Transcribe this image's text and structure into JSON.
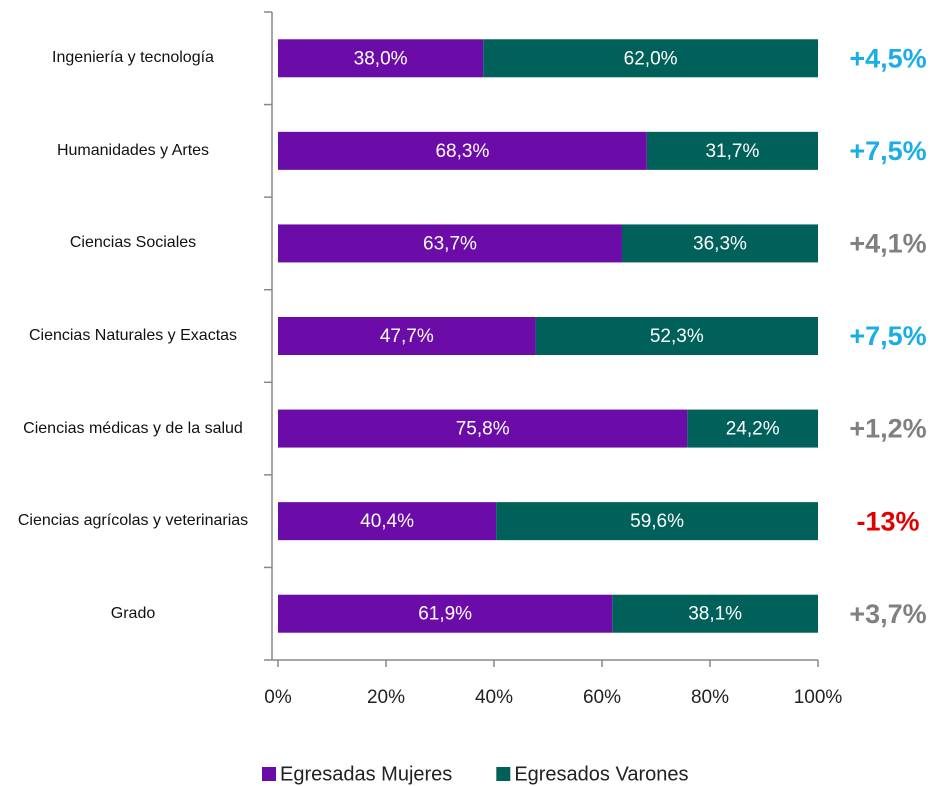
{
  "chart_data": {
    "type": "bar",
    "orientation": "horizontal",
    "stacked": true,
    "categories": [
      "Ingeniería y tecnología",
      "Humanidades y Artes",
      "Ciencias Sociales",
      "Ciencias Naturales y Exactas",
      "Ciencias médicas y de la salud",
      "Ciencias agrícolas y veterinarias",
      "Grado"
    ],
    "series": [
      {
        "name": "Egresadas Mujeres",
        "color": "#6c0ca8",
        "values": [
          38.0,
          68.3,
          63.7,
          47.7,
          75.8,
          40.4,
          61.9
        ],
        "value_labels": [
          "38,0%",
          "68,3%",
          "63,7%",
          "47,7%",
          "75,8%",
          "40,4%",
          "61,9%"
        ]
      },
      {
        "name": "Egresados Varones",
        "color": "#00605a",
        "values": [
          62.0,
          31.7,
          36.3,
          52.3,
          24.2,
          59.6,
          38.1
        ],
        "value_labels": [
          "62,0%",
          "31,7%",
          "36,3%",
          "52,3%",
          "24,2%",
          "59,6%",
          "38,1%"
        ]
      }
    ],
    "annotations": [
      {
        "text": "+4,5%",
        "color": "#1aaee6"
      },
      {
        "text": "+7,5%",
        "color": "#1aaee6"
      },
      {
        "text": "+4,1%",
        "color": "#808080"
      },
      {
        "text": "+7,5%",
        "color": "#1aaee6"
      },
      {
        "text": "+1,2%",
        "color": "#808080"
      },
      {
        "text": "-13%",
        "color": "#e00000"
      },
      {
        "text": "+3,7%",
        "color": "#808080"
      }
    ],
    "xlim": [
      0,
      100
    ],
    "xticks": [
      {
        "value": 0,
        "label": "0%"
      },
      {
        "value": 20,
        "label": "20%"
      },
      {
        "value": 40,
        "label": "40%"
      },
      {
        "value": 60,
        "label": "60%"
      },
      {
        "value": 80,
        "label": "80%"
      },
      {
        "value": 100,
        "label": "100%"
      }
    ],
    "legend": "bottom"
  }
}
